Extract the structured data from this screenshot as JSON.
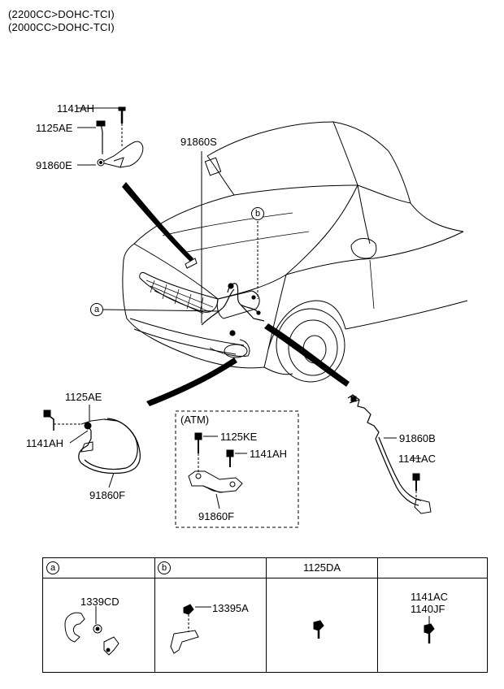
{
  "header": {
    "line1": "(2200CC>DOHC-TCI)",
    "line2": "(2000CC>DOHC-TCI)"
  },
  "labels": {
    "top_bolt_1": "1141AH",
    "top_bolt_2": "1125AE",
    "top_cable": "91860E",
    "hood_harness": "91860S",
    "callout_b": "b",
    "callout_a": "a",
    "left_bolt_1": "1125AE",
    "left_bolt_2": "1141AH",
    "left_cable": "91860F",
    "atm_title": "(ATM)",
    "atm_bolt_1": "1125KE",
    "atm_bolt_2": "1141AH",
    "atm_cable": "91860F",
    "right_cable": "91860B",
    "right_bolt": "1141AC"
  },
  "table": {
    "col1_header": "a",
    "col2_header": "b",
    "col3_header": "1125DA",
    "col4_header": "",
    "col1_part": "1339CD",
    "col2_part": "13395A",
    "col4_part_1": "1141AC",
    "col4_part_2": "1140JF"
  }
}
